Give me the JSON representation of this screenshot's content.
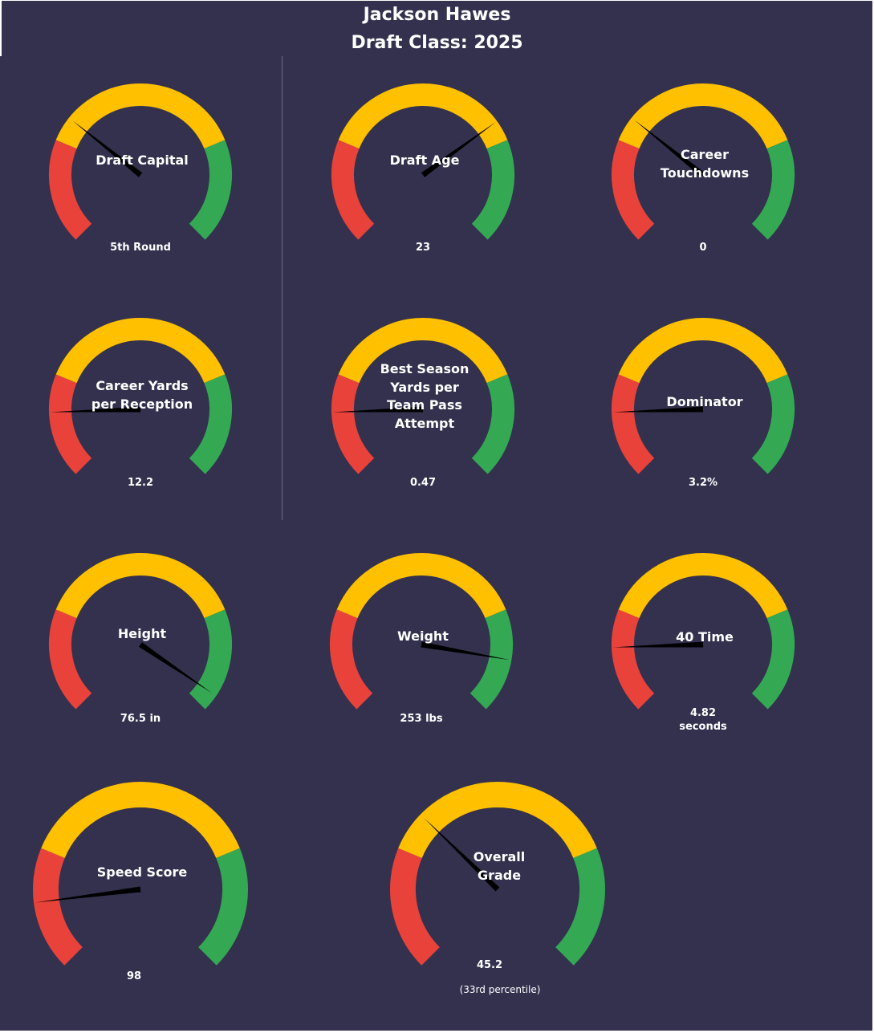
{
  "title": "Jackson Hawes",
  "subtitle": "Draft Class: 2025",
  "colors": {
    "background": "#33314e",
    "red": "#e8423a",
    "yellow": "#ffc000",
    "green": "#34a853",
    "needle": "#000000",
    "text": "#ffffff"
  },
  "chart_data": [
    {
      "type": "gauge",
      "label": "Draft Capital",
      "value": "5th Round",
      "needle_fraction": 0.31
    },
    {
      "type": "gauge",
      "label": "Draft Age",
      "value": "23",
      "needle_fraction": 0.7
    },
    {
      "type": "gauge",
      "label": "Career Touchdowns",
      "value": "0",
      "needle_fraction": 0.31
    },
    {
      "type": "gauge",
      "label": "Career Yards per Reception",
      "value": "12.2",
      "needle_fraction": 0.16
    },
    {
      "type": "gauge",
      "label": "Best Season Yards per Team Pass Attempt",
      "value": "0.47",
      "needle_fraction": 0.16
    },
    {
      "type": "gauge",
      "label": "Dominator",
      "value": "3.2%",
      "needle_fraction": 0.16
    },
    {
      "type": "gauge",
      "label": "Height",
      "value": "76.5 in",
      "needle_fraction": 0.96
    },
    {
      "type": "gauge",
      "label": "Weight",
      "value": "253 lbs",
      "needle_fraction": 0.87
    },
    {
      "type": "gauge",
      "label": "40 Time",
      "value": "4.82 seconds",
      "needle_fraction": 0.16
    },
    {
      "type": "gauge",
      "label": "Speed Score",
      "value": "98",
      "needle_fraction": 0.14
    },
    {
      "type": "gauge",
      "label": "Overall Grade",
      "value": "45.2",
      "note": "(33rd  percentile)",
      "needle_fraction": 0.33
    }
  ]
}
